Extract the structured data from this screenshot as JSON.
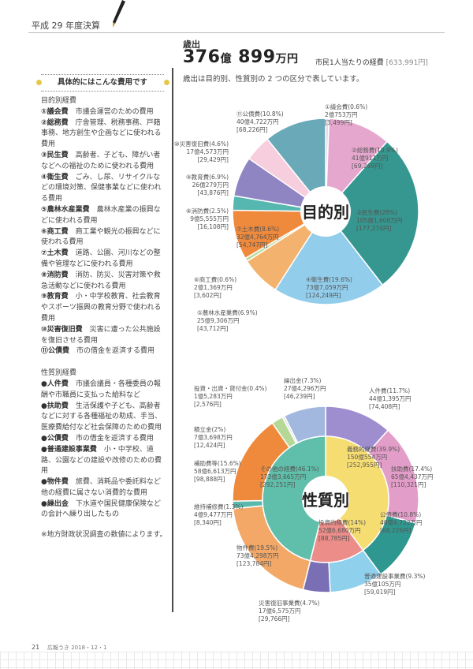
{
  "header": {
    "title": "平成 29 年度決算"
  },
  "sidebar": {
    "title": "具体的にはこんな費用です",
    "section1": "目的別経費",
    "purpose_items": [
      {
        "term": "①議会費",
        "desc": "市議会運営のための費用"
      },
      {
        "term": "②総務費",
        "desc": "庁舎管理、税務事務、戸籍事務、地方創生や企画などに使われる費用"
      },
      {
        "term": "③民生費",
        "desc": "高齢者、子ども、障がい者などへの福祉のために使われる費用"
      },
      {
        "term": "④衛生費",
        "desc": "ごみ、し尿、リサイクルなどの環境対策、保健事業などに使われる費用"
      },
      {
        "term": "⑤農林水産業費",
        "desc": "農林水産業の振興などに使われる費用"
      },
      {
        "term": "⑥商工費",
        "desc": "商工業や観光の振興などに使われる費用"
      },
      {
        "term": "⑦土木費",
        "desc": "道路、公園、河川などの整備や管理などに使われる費用"
      },
      {
        "term": "⑧消防費",
        "desc": "消防、防災、災害対策や救急活動などに使われる費用"
      },
      {
        "term": "⑨教育費",
        "desc": "小・中学校教育、社会教育やスポーツ振興の教育分野で使われる費用"
      },
      {
        "term": "⑩災害復旧費",
        "desc": "災害に遭った公共施設を復旧させる費用"
      },
      {
        "term": "⑪公債費",
        "desc": "市の借金を返済する費用"
      }
    ],
    "section2": "性質別経費",
    "nature_items": [
      {
        "term": "●人件費",
        "desc": "市議会議員・各種委員の報酬や市職員に支払った給料など"
      },
      {
        "term": "●扶助費",
        "desc": "生活保護や子ども、高齢者などに対する各種福祉の助成、手当、医療費給付など社会保障のための費用"
      },
      {
        "term": "●公債費",
        "desc": "市の借金を返済する費用"
      },
      {
        "term": "●普通建設事業費",
        "desc": "小・中学校、道路、公園などの建設や改修のための費用"
      },
      {
        "term": "●物件費",
        "desc": "旅費、消耗品や委託料など他の経費に属さない消費的な費用"
      },
      {
        "term": "●繰出金",
        "desc": "下水道や国民健康保険などの会計へ繰り出したもの"
      }
    ],
    "note": "※地方財政状況調査の数値によります。"
  },
  "summary": {
    "label": "歳出",
    "amount_num1": "376",
    "amount_unit1": "億",
    "amount_num2": "899",
    "amount_unit2": "万円",
    "percap_label": "市民1人当たりの経費",
    "percap_value": "[633,991円]",
    "note": "歳出は目的別、性質別の 2 つの区分で表しています。"
  },
  "chart_data": [
    {
      "type": "pie",
      "title": "目的別",
      "slices": [
        {
          "name": "①議会費",
          "percent": 0.6,
          "amount": "2億753万円",
          "per_capita": "[3,499円]",
          "color": "#e3d9e3"
        },
        {
          "name": "②総務費",
          "percent": 10.9,
          "amount": "41億911万円",
          "per_capita": "[69,269円]",
          "color": "#e6a7cf"
        },
        {
          "name": "③民生費",
          "percent": 28.0,
          "amount": "105億1,608万円",
          "per_capita": "[177,274円]",
          "color": "#35978f"
        },
        {
          "name": "④衛生費",
          "percent": 19.6,
          "amount": "73億7,059万円",
          "per_capita": "[124,249円]",
          "color": "#92cdec"
        },
        {
          "name": "⑤農林水産業費",
          "percent": 6.9,
          "amount": "25億9,306万円",
          "per_capita": "[43,712円]",
          "color": "#f3b26e"
        },
        {
          "name": "⑥商工費",
          "percent": 0.6,
          "amount": "2億1,369万円",
          "per_capita": "[3,602円]",
          "color": "#b9d99a"
        },
        {
          "name": "⑦土木費",
          "percent": 8.6,
          "amount": "32億4,764万円",
          "per_capita": "[54,747円]",
          "color": "#ef8a3c"
        },
        {
          "name": "⑧消防費",
          "percent": 2.5,
          "amount": "9億5,555万円",
          "per_capita": "[16,108円]",
          "color": "#55b7b0"
        },
        {
          "name": "⑨教育費",
          "percent": 6.9,
          "amount": "26億279万円",
          "per_capita": "[43,876円]",
          "color": "#9085c3"
        },
        {
          "name": "⑩災害復旧費",
          "percent": 4.6,
          "amount": "17億4,573万円",
          "per_capita": "[29,429円]",
          "color": "#f7cedd"
        },
        {
          "name": "⑪公債費",
          "percent": 10.8,
          "amount": "40億4,722万円",
          "per_capita": "[68,226円]",
          "color": "#6aa9b8"
        }
      ]
    },
    {
      "type": "pie",
      "title": "性質別",
      "inner": [
        {
          "name": "義務的経費",
          "percent": 39.9,
          "amount": "150億554万円",
          "per_capita": "[252,955円]",
          "color": "#f6dd72"
        },
        {
          "name": "投資的経費",
          "percent": 14,
          "amount": "52億6,680万円",
          "per_capita": "[88,785円]",
          "color": "#ec8d8a"
        },
        {
          "name": "その他の経費",
          "percent": 46.1,
          "amount": "173億3,665万円",
          "per_capita": "[292,251円]",
          "color": "#5fbfaa"
        }
      ],
      "outer": [
        {
          "name": "人件費",
          "percent": 11.7,
          "amount": "44億1,395万円",
          "per_capita": "[74,408円]",
          "color": "#9f8ecf"
        },
        {
          "name": "扶助費",
          "percent": 17.4,
          "amount": "65億4,437万円",
          "per_capita": "[110,321円]",
          "color": "#e39dc9"
        },
        {
          "name": "公債費",
          "percent": 10.8,
          "amount": "40億4,722万円",
          "per_capita": "[68,226円]",
          "color": "#2e9890"
        },
        {
          "name": "普通建設事業費",
          "percent": 9.3,
          "amount": "35億105万円",
          "per_capita": "[59,019円]",
          "color": "#8fd0ec"
        },
        {
          "name": "災害復旧事業費",
          "percent": 4.7,
          "amount": "17億6,575万円",
          "per_capita": "[29,766円]",
          "color": "#7a6fb4"
        },
        {
          "name": "物件費",
          "percent": 19.5,
          "amount": "73億4,298万円",
          "per_capita": "[123,784円]",
          "color": "#f3a867"
        },
        {
          "name": "維持補修費",
          "percent": 1.3,
          "amount": "4億9,477万円",
          "per_capita": "[8,340円]",
          "color": "#59b9ad"
        },
        {
          "name": "補助費等",
          "percent": 15.6,
          "amount": "58億6,613万円",
          "per_capita": "[98,888円]",
          "color": "#ef8a3c"
        },
        {
          "name": "積立金",
          "percent": 2.0,
          "amount": "7億3,698万円",
          "per_capita": "[12,424円]",
          "color": "#b5d896"
        },
        {
          "name": "投資・出資・貸付金",
          "percent": 0.4,
          "amount": "1億5,283万円",
          "per_capita": "[2,576円]",
          "color": "#e4dbe4"
        },
        {
          "name": "繰出金",
          "percent": 7.3,
          "amount": "27億4,296万円",
          "per_capita": "[46,239円]",
          "color": "#a2b8df"
        }
      ]
    }
  ],
  "footer": {
    "page": "21",
    "publication": "広報うき 2018・12・1"
  }
}
